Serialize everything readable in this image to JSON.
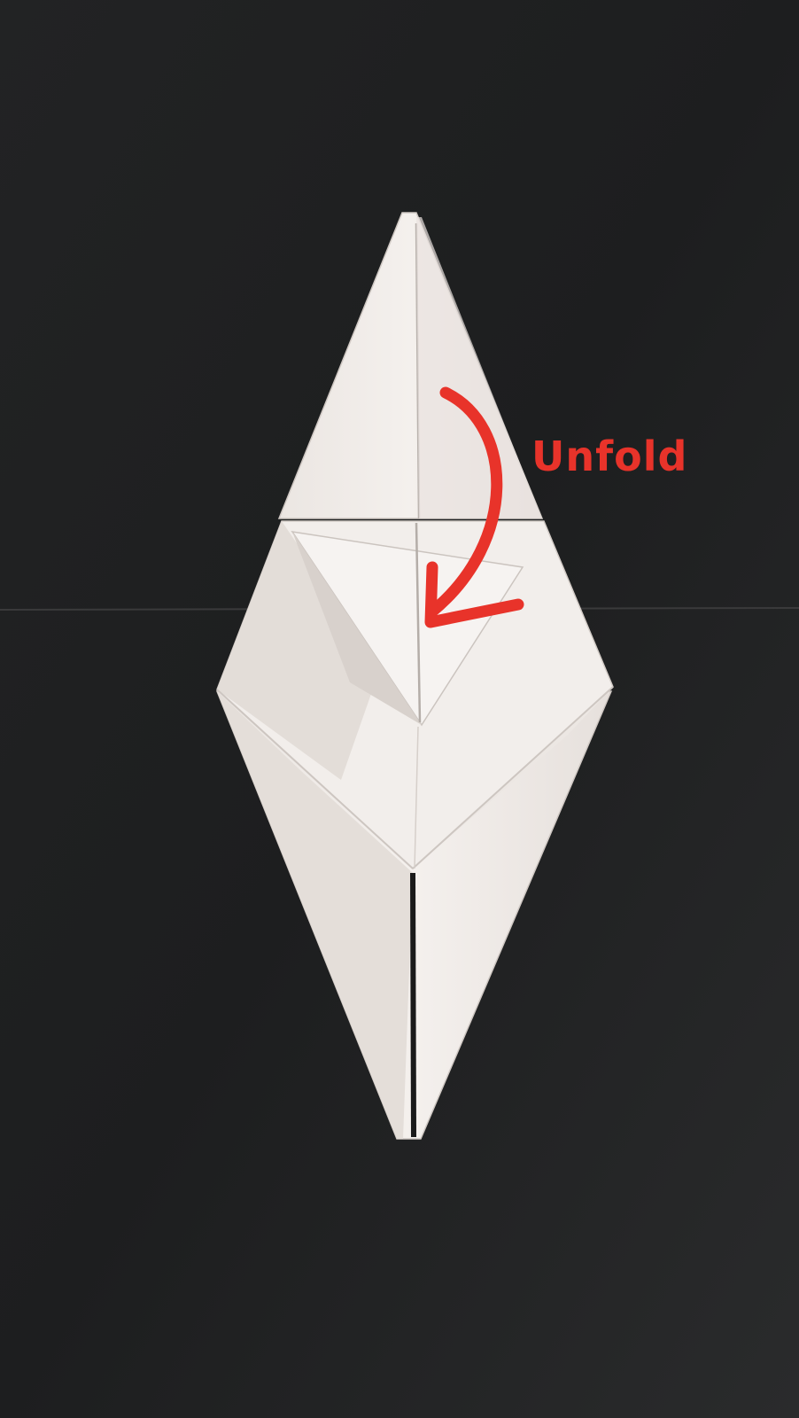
{
  "annotation": {
    "label": "Unfold",
    "color": "#e8332a"
  },
  "subject": "origami-crane-fold-step",
  "colors": {
    "background": "#1e1e1f",
    "paper": "#f3efec",
    "paper_shadow": "#d9d3cf"
  }
}
